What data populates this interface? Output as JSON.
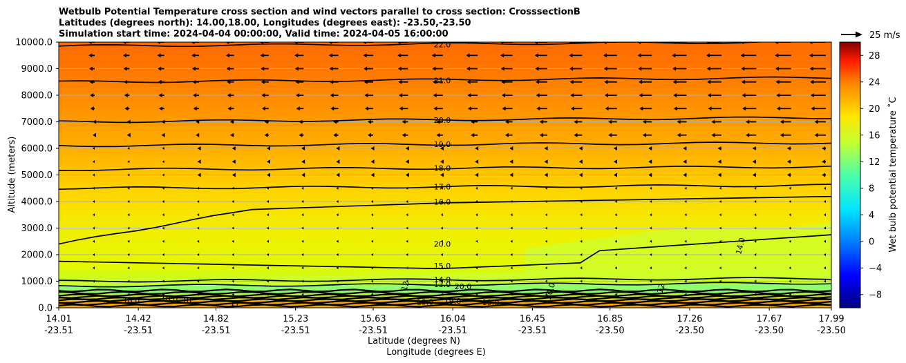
{
  "chart_data": {
    "type": "contour",
    "title_lines": [
      "Wetbulb Potential Temperature cross section and wind vectors parallel to cross section: CrosssectionB",
      "Latitudes (degrees north): 14.00,18.00, Longitudes (degrees east): -23.50,-23.50",
      "Simulation start time: 2024-04-04 00:00:00, Valid time: 2024-04-05 16:00:00"
    ],
    "ylabel": "Altitude (meters)",
    "xlabel_lat": "Latitude (degrees N)",
    "xlabel_lon": "Longitude (degrees E)",
    "ylim": [
      0,
      10000
    ],
    "y_ticks": [
      "0.0",
      "1000.0",
      "2000.0",
      "3000.0",
      "4000.0",
      "5000.0",
      "6000.0",
      "7000.0",
      "8000.0",
      "9000.0",
      "10000.0"
    ],
    "y_tick_values": [
      0,
      1000,
      2000,
      3000,
      4000,
      5000,
      6000,
      7000,
      8000,
      9000,
      10000
    ],
    "xlim": [
      14.01,
      17.99
    ],
    "x_ticks": [
      {
        "lat": "14.01",
        "lon": "-23.51",
        "v": 14.01
      },
      {
        "lat": "14.42",
        "lon": "-23.51",
        "v": 14.42
      },
      {
        "lat": "14.82",
        "lon": "-23.51",
        "v": 14.82
      },
      {
        "lat": "15.23",
        "lon": "-23.51",
        "v": 15.23
      },
      {
        "lat": "15.63",
        "lon": "-23.51",
        "v": 15.63
      },
      {
        "lat": "16.04",
        "lon": "-23.51",
        "v": 16.04
      },
      {
        "lat": "16.45",
        "lon": "-23.51",
        "v": 16.45
      },
      {
        "lat": "16.85",
        "lon": "-23.50",
        "v": 16.85
      },
      {
        "lat": "17.26",
        "lon": "-23.50",
        "v": 17.26
      },
      {
        "lat": "17.67",
        "lon": "-23.50",
        "v": 17.67
      },
      {
        "lat": "17.99",
        "lon": "-23.50",
        "v": 17.99
      }
    ],
    "colorbar_label": "Wet bulb potential temperature ˚C",
    "colorbar_range": [
      -10,
      30
    ],
    "colorbar_ticks": [
      "−8",
      "−4",
      "0",
      "4",
      "8",
      "12",
      "16",
      "20",
      "24",
      "28"
    ],
    "colorbar_tick_values": [
      -8,
      -4,
      0,
      4,
      8,
      12,
      16,
      20,
      24,
      28
    ],
    "quiver_key_label": "25 m/s",
    "contours": [
      {
        "label": "22.0",
        "alt": 9850
      },
      {
        "label": "21.0",
        "alt": 8500
      },
      {
        "label": "20.0",
        "alt": 7000
      },
      {
        "label": "19.0",
        "alt": 6100
      },
      {
        "label": "18.0",
        "alt": 5200
      },
      {
        "label": "17.0",
        "alt": 4500
      },
      {
        "label": "16.0",
        "alt": 3930
      },
      {
        "label": "15.0",
        "alt": 1520
      },
      {
        "label": "14.0",
        "alt": 1000
      },
      {
        "label": "13.0",
        "alt": 820
      }
    ],
    "near_surface_labels": [
      "18.0",
      "17",
      "20.0",
      "18",
      "19.0",
      "19.0",
      "18.0",
      "19.0",
      "12",
      "12",
      "14.0",
      "20.0",
      "20.0"
    ]
  }
}
